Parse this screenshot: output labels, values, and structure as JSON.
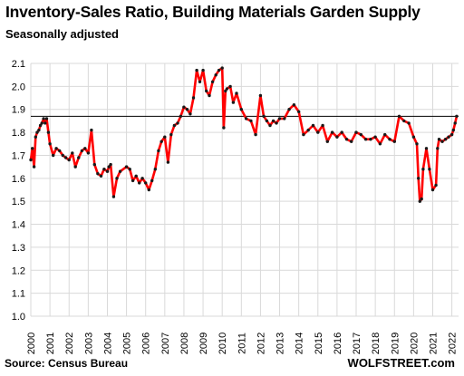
{
  "title": "Inventory-Sales Ratio, Building Materials Garden Supply",
  "subtitle": "Seasonally adjusted",
  "source": "Source: Census Bureau",
  "watermark": "WOLFSTREET.com",
  "colors": {
    "line": "#ff0000",
    "markers": "#1a1a1a",
    "grid": "#d9d9d9",
    "reference": "#000000"
  },
  "chart_data": {
    "type": "line",
    "title": "Inventory-Sales Ratio, Building Materials Garden Supply",
    "subtitle": "Seasonally adjusted",
    "xlabel": "",
    "ylabel": "",
    "ylim": [
      1.0,
      2.1
    ],
    "yticks": [
      "1.0",
      "1.1",
      "1.2",
      "1.3",
      "1.4",
      "1.5",
      "1.6",
      "1.7",
      "1.8",
      "1.9",
      "2.0",
      "2.1"
    ],
    "xlim": [
      2000.0,
      2022.35
    ],
    "xticks": [
      "2000",
      "2001",
      "2002",
      "2003",
      "2004",
      "2005",
      "2006",
      "2007",
      "2008",
      "2009",
      "2010",
      "2011",
      "2012",
      "2013",
      "2014",
      "2015",
      "2016",
      "2017",
      "2018",
      "2019",
      "2020",
      "2021",
      "2022"
    ],
    "grid": true,
    "reference_line": {
      "y": 1.87
    },
    "markers": true,
    "series": [
      {
        "x": [
          2000.0,
          2000.08,
          2000.17,
          2000.25,
          2000.33,
          2000.42,
          2000.5,
          2000.58,
          2000.67,
          2000.75,
          2000.83,
          2000.92,
          2001.0,
          2001.17,
          2001.33,
          2001.5,
          2001.67,
          2001.83,
          2002.0,
          2002.17,
          2002.33,
          2002.5,
          2002.67,
          2002.83,
          2003.0,
          2003.17,
          2003.33,
          2003.5,
          2003.67,
          2003.83,
          2004.0,
          2004.08,
          2004.17,
          2004.33,
          2004.5,
          2004.67,
          2005.0,
          2005.17,
          2005.33,
          2005.5,
          2005.67,
          2005.83,
          2006.0,
          2006.17,
          2006.33,
          2006.5,
          2006.67,
          2006.83,
          2007.0,
          2007.17,
          2007.33,
          2007.5,
          2007.67,
          2007.83,
          2008.0,
          2008.17,
          2008.33,
          2008.5,
          2008.67,
          2008.83,
          2009.0,
          2009.17,
          2009.33,
          2009.5,
          2009.67,
          2009.83,
          2010.0,
          2010.08,
          2010.17,
          2010.25,
          2010.42,
          2010.58,
          2010.75,
          2011.0,
          2011.25,
          2011.5,
          2011.75,
          2012.0,
          2012.17,
          2012.33,
          2012.5,
          2012.67,
          2012.83,
          2013.0,
          2013.25,
          2013.5,
          2013.75,
          2014.0,
          2014.25,
          2014.5,
          2014.75,
          2015.0,
          2015.25,
          2015.5,
          2015.75,
          2016.0,
          2016.25,
          2016.5,
          2016.75,
          2017.0,
          2017.25,
          2017.5,
          2017.75,
          2018.0,
          2018.25,
          2018.5,
          2018.75,
          2019.0,
          2019.25,
          2019.5,
          2019.75,
          2020.0,
          2020.17,
          2020.25,
          2020.33,
          2020.42,
          2020.5,
          2020.67,
          2020.83,
          2021.0,
          2021.17,
          2021.25,
          2021.33,
          2021.5,
          2021.67,
          2021.83,
          2022.0,
          2022.08,
          2022.17,
          2022.25
        ],
        "values": [
          1.68,
          1.73,
          1.65,
          1.78,
          1.8,
          1.81,
          1.83,
          1.84,
          1.86,
          1.84,
          1.86,
          1.8,
          1.75,
          1.7,
          1.73,
          1.72,
          1.7,
          1.69,
          1.68,
          1.71,
          1.65,
          1.69,
          1.72,
          1.73,
          1.71,
          1.81,
          1.66,
          1.62,
          1.61,
          1.64,
          1.63,
          1.65,
          1.66,
          1.52,
          1.6,
          1.63,
          1.65,
          1.64,
          1.59,
          1.61,
          1.58,
          1.6,
          1.58,
          1.55,
          1.59,
          1.64,
          1.72,
          1.76,
          1.78,
          1.67,
          1.79,
          1.83,
          1.84,
          1.87,
          1.91,
          1.9,
          1.88,
          1.95,
          2.07,
          2.02,
          2.07,
          1.98,
          1.96,
          2.02,
          2.05,
          2.07,
          2.08,
          1.82,
          1.98,
          1.99,
          2.0,
          1.93,
          1.97,
          1.9,
          1.86,
          1.85,
          1.79,
          1.96,
          1.87,
          1.85,
          1.83,
          1.85,
          1.84,
          1.86,
          1.86,
          1.9,
          1.92,
          1.89,
          1.79,
          1.81,
          1.83,
          1.8,
          1.83,
          1.76,
          1.8,
          1.78,
          1.8,
          1.77,
          1.76,
          1.8,
          1.79,
          1.77,
          1.77,
          1.78,
          1.75,
          1.79,
          1.77,
          1.76,
          1.87,
          1.85,
          1.84,
          1.78,
          1.75,
          1.6,
          1.5,
          1.51,
          1.64,
          1.73,
          1.64,
          1.55,
          1.57,
          1.73,
          1.77,
          1.76,
          1.77,
          1.78,
          1.79,
          1.81,
          1.84,
          1.87
        ]
      }
    ]
  }
}
